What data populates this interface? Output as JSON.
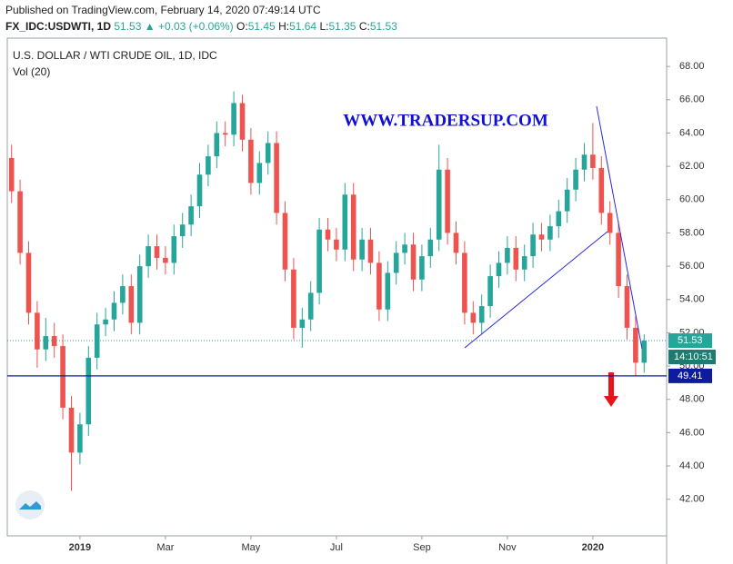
{
  "header": {
    "published": "Published on TradingView.com, February 14, 2020 07:49:14 UTC",
    "symbol": "FX_IDC:USDWTI, 1D",
    "last": "51.53",
    "change": "▲ +0.03 (+0.06%)",
    "ohlc": [
      {
        "key": "O:",
        "value": "51.45"
      },
      {
        "key": "H:",
        "value": "51.64"
      },
      {
        "key": "L:",
        "value": "51.35"
      },
      {
        "key": "C:",
        "value": "51.53"
      }
    ]
  },
  "chart_data": {
    "type": "candlestick",
    "title": "U.S. DOLLAR / WTI CRUDE OIL, 1D, IDC",
    "subtitle": "Vol (20)",
    "watermark": "WWW.TRADERSUP.COM",
    "categories": [
      null,
      null,
      null,
      null,
      null,
      null,
      null,
      null,
      "2019",
      null,
      null,
      null,
      null,
      null,
      null,
      null,
      null,
      null,
      "Mar",
      null,
      null,
      null,
      null,
      null,
      null,
      null,
      null,
      null,
      "May",
      null,
      null,
      null,
      null,
      null,
      null,
      null,
      null,
      null,
      "Jul",
      null,
      null,
      null,
      null,
      null,
      null,
      null,
      null,
      null,
      "Sep",
      null,
      null,
      null,
      null,
      null,
      null,
      null,
      null,
      null,
      "Nov",
      null,
      null,
      null,
      null,
      null,
      null,
      null,
      null,
      null,
      "2020",
      null,
      null,
      null,
      null,
      null,
      null
    ],
    "open": [
      62.5,
      60.5,
      56.8,
      53.2,
      51.0,
      51.8,
      51.2,
      47.5,
      44.8,
      46.5,
      50.5,
      52.5,
      52.8,
      53.8,
      54.8,
      52.6,
      56.0,
      57.2,
      56.5,
      56.2,
      57.8,
      58.5,
      59.6,
      61.5,
      62.6,
      64.0,
      63.9,
      65.8,
      63.6,
      61.0,
      62.2,
      63.4,
      59.2,
      55.8,
      52.3,
      52.8,
      54.4,
      58.2,
      57.6,
      57.0,
      60.3,
      56.4,
      57.6,
      56.2,
      53.4,
      55.6,
      56.8,
      57.3,
      55.2,
      56.6,
      57.6,
      61.8,
      58.0,
      56.8,
      53.2,
      52.6,
      53.6,
      55.4,
      56.2,
      57.1,
      55.8,
      56.6,
      57.9,
      57.6,
      58.4,
      59.3,
      60.6,
      61.8,
      62.7,
      61.9,
      59.2,
      58.0,
      54.8,
      52.3,
      50.2
    ],
    "high": [
      63.3,
      61.2,
      57.5,
      53.9,
      52.9,
      52.6,
      51.9,
      48.2,
      47.2,
      51.2,
      53.2,
      53.5,
      54.5,
      55.5,
      55.5,
      56.7,
      57.9,
      57.9,
      57.2,
      58.5,
      59.2,
      60.3,
      62.2,
      63.3,
      64.7,
      64.7,
      66.5,
      66.3,
      64.3,
      62.9,
      64.1,
      64.1,
      59.9,
      56.5,
      53.5,
      55.1,
      58.9,
      58.9,
      58.3,
      61.0,
      61.0,
      58.3,
      58.3,
      56.9,
      56.3,
      57.5,
      58.0,
      58.0,
      57.3,
      58.3,
      63.3,
      62.5,
      58.7,
      57.5,
      53.9,
      54.3,
      56.1,
      56.9,
      57.8,
      57.8,
      57.3,
      58.6,
      58.6,
      59.1,
      60.0,
      61.3,
      62.5,
      63.4,
      64.6,
      62.6,
      59.9,
      58.7,
      55.5,
      53.0,
      51.9
    ],
    "low": [
      59.8,
      56.1,
      52.5,
      49.9,
      50.3,
      50.5,
      46.8,
      42.5,
      44.1,
      45.8,
      49.8,
      51.8,
      52.1,
      53.1,
      51.9,
      51.9,
      55.3,
      55.8,
      55.5,
      55.5,
      57.1,
      57.8,
      58.9,
      60.8,
      61.9,
      63.2,
      63.2,
      62.9,
      60.3,
      60.3,
      61.5,
      58.5,
      55.1,
      51.6,
      51.1,
      52.1,
      53.7,
      56.9,
      56.3,
      56.3,
      55.7,
      55.7,
      55.5,
      52.7,
      52.7,
      54.9,
      56.1,
      54.5,
      54.5,
      55.9,
      56.9,
      57.3,
      56.1,
      52.5,
      51.9,
      51.9,
      52.9,
      54.7,
      55.5,
      55.1,
      55.1,
      55.9,
      56.9,
      56.9,
      57.7,
      58.6,
      59.9,
      61.1,
      61.2,
      58.5,
      57.3,
      54.1,
      51.6,
      49.41,
      49.6
    ],
    "close": [
      60.5,
      56.8,
      53.2,
      51.0,
      51.8,
      51.2,
      47.5,
      44.8,
      46.5,
      50.5,
      52.5,
      52.8,
      53.8,
      54.8,
      52.6,
      56.0,
      57.2,
      56.5,
      56.2,
      57.8,
      58.5,
      59.6,
      61.5,
      62.6,
      64.0,
      63.9,
      65.8,
      63.6,
      61.0,
      62.2,
      63.4,
      59.2,
      55.8,
      52.3,
      52.8,
      54.4,
      58.2,
      57.6,
      57.0,
      60.3,
      56.4,
      57.6,
      56.2,
      53.4,
      55.6,
      56.8,
      57.3,
      55.2,
      56.6,
      57.6,
      61.8,
      58.0,
      56.8,
      53.2,
      52.6,
      53.6,
      55.4,
      56.2,
      57.1,
      55.8,
      56.6,
      57.9,
      57.6,
      58.4,
      59.3,
      60.6,
      61.8,
      62.7,
      61.9,
      59.2,
      58.0,
      54.8,
      52.3,
      50.2,
      51.53
    ],
    "up_color": "#26a69a",
    "down_color": "#ef5350",
    "ylim": [
      39.8,
      69.7
    ],
    "yticks": [
      {
        "value": 42,
        "label": "42.00"
      },
      {
        "value": 44,
        "label": "44.00"
      },
      {
        "value": 46,
        "label": "46.00"
      },
      {
        "value": 48,
        "label": "48.00"
      },
      {
        "value": 50,
        "label": "50.00"
      },
      {
        "value": 52,
        "label": "52.00"
      },
      {
        "value": 54,
        "label": "54.00"
      },
      {
        "value": 56,
        "label": "56.00"
      },
      {
        "value": 58,
        "label": "58.00"
      },
      {
        "value": 60,
        "label": "60.00"
      },
      {
        "value": 62,
        "label": "62.00"
      },
      {
        "value": 64,
        "label": "64.00"
      },
      {
        "value": 66,
        "label": "66.00"
      },
      {
        "value": 68,
        "label": "68.00"
      }
    ],
    "last_price": {
      "value": 51.53,
      "label": "51.53",
      "color": "#26a69a"
    },
    "countdown": "14:10:51",
    "level": {
      "value": 49.41,
      "label": "49.41",
      "color": "#0d1b9e"
    }
  }
}
